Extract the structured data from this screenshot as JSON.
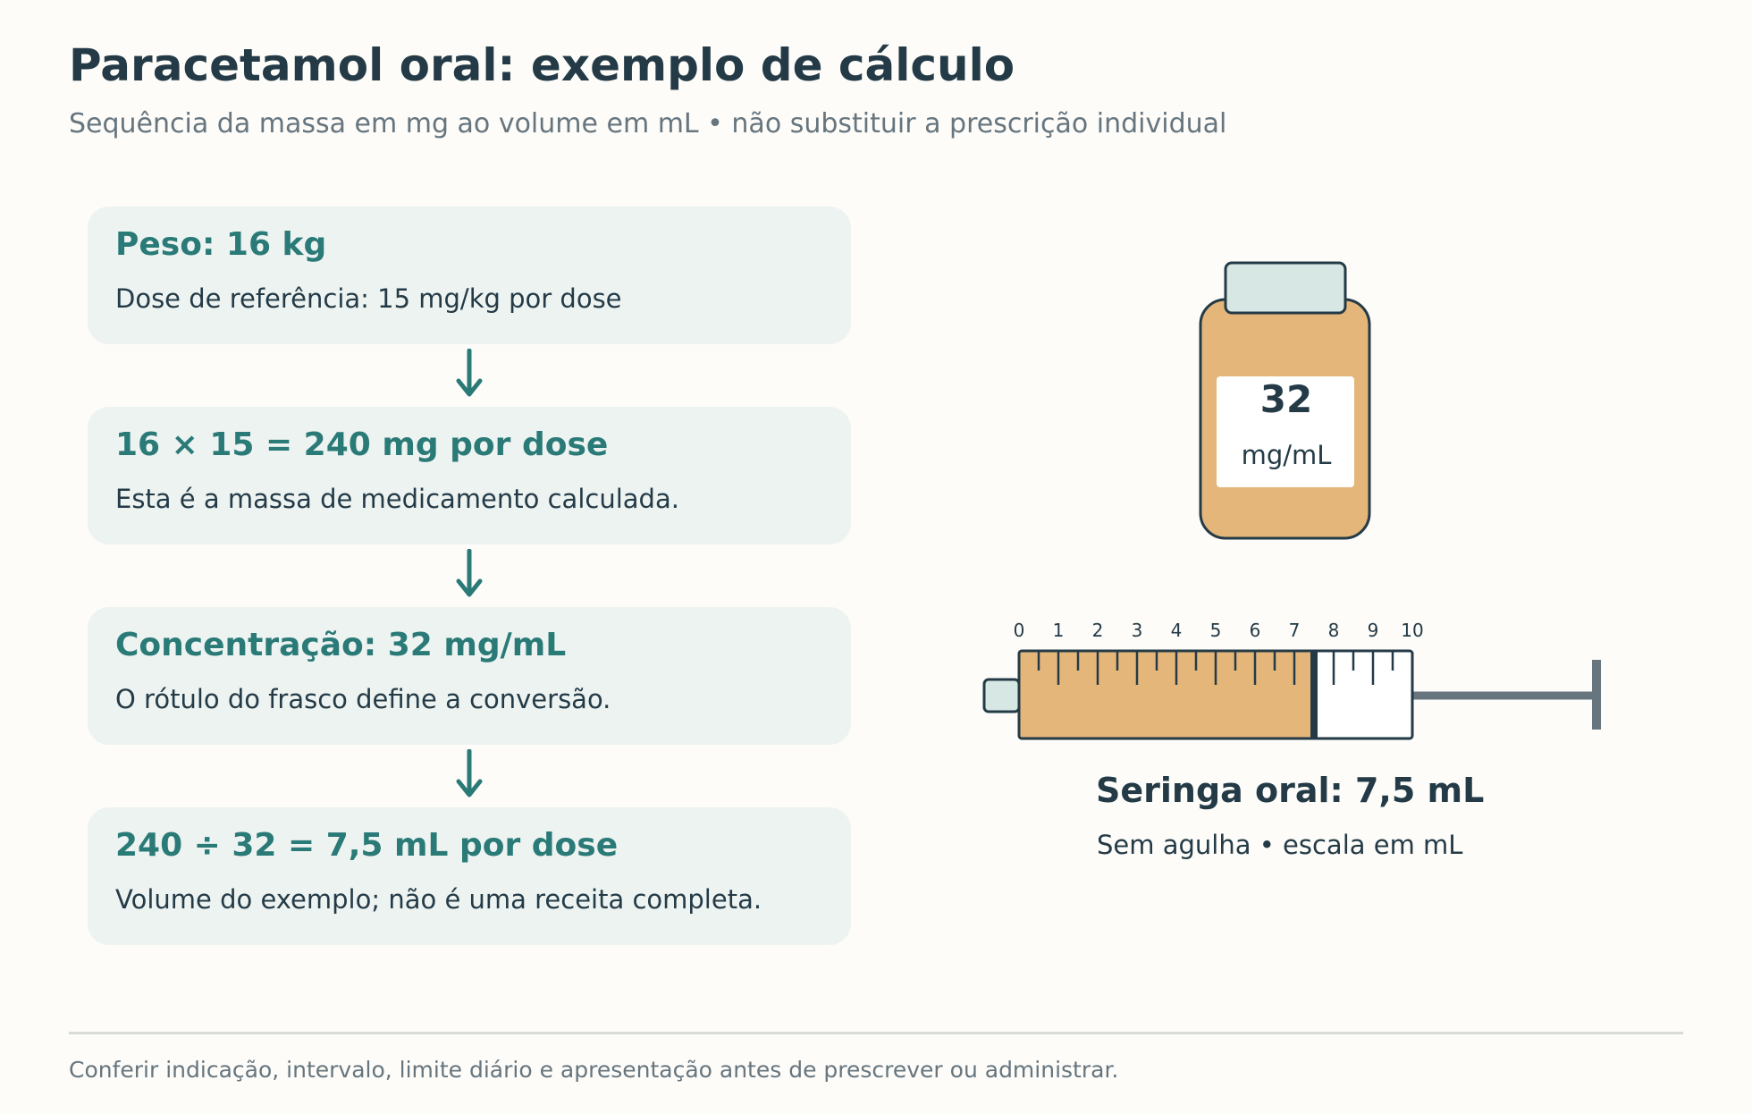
{
  "header": {
    "title": "Paracetamol oral: exemplo de cálculo",
    "subtitle": "Sequência da massa em mg ao volume em mL • não substituir a prescrição individual"
  },
  "steps": [
    {
      "heading": "Peso: 16 kg",
      "text": "Dose de referência: 15 mg/kg por dose"
    },
    {
      "heading": "16 × 15 = 240 mg por dose",
      "text": "Esta é a massa de medicamento calculada."
    },
    {
      "heading": "Concentração: 32 mg/mL",
      "text": "O rótulo do frasco define a conversão."
    },
    {
      "heading": "240 ÷ 32 = 7,5 mL por dose",
      "text": "Volume do exemplo; não é uma receita completa."
    }
  ],
  "bottle": {
    "value": "32",
    "unit": "mg/mL"
  },
  "syringe": {
    "scale_labels": [
      "0",
      "1",
      "2",
      "3",
      "4",
      "5",
      "6",
      "7",
      "8",
      "9",
      "10"
    ],
    "scale_max_ml": 10,
    "fill_ml": 7.5,
    "title": "Seringa oral: 7,5 mL",
    "subtitle": "Sem agulha • escala em mL"
  },
  "footer": {
    "note": "Conferir indicação, intervalo, limite diário e apresentação antes de prescrever ou administrar."
  },
  "colors": {
    "accent": "#2a7a77",
    "ink": "#243b47",
    "muted": "#66757e",
    "card": "#edf3f1",
    "liquid": "#e5b67a",
    "cap": "#d7e7e3"
  }
}
